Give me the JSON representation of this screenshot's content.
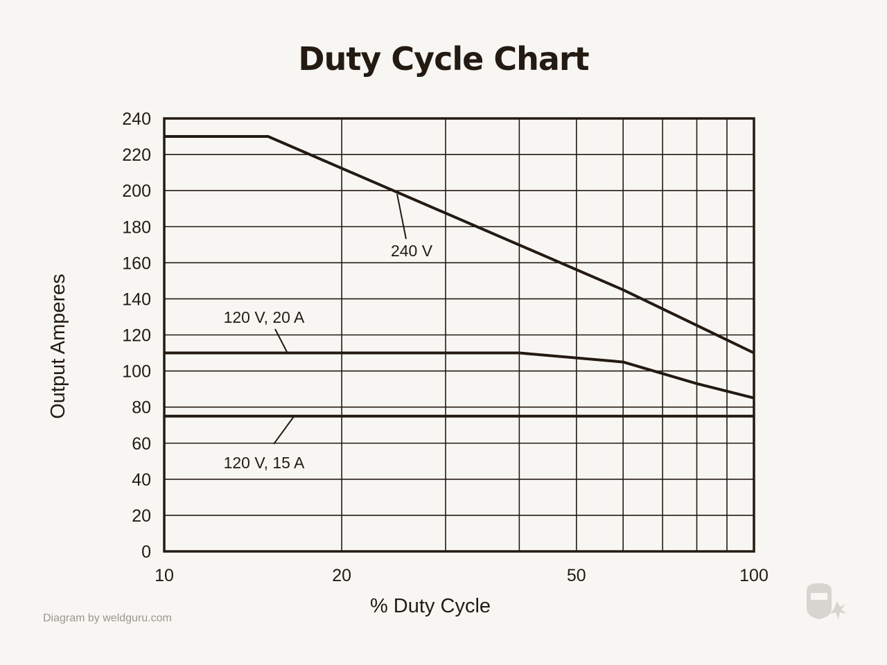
{
  "chart_data": {
    "type": "line",
    "title": "Duty Cycle Chart",
    "xlabel": "% Duty Cycle",
    "ylabel": "Output Amperes",
    "x_scale": "log",
    "xlim": [
      10,
      100
    ],
    "ylim": [
      0,
      240
    ],
    "x_ticks": [
      10,
      20,
      50,
      100
    ],
    "x_gridlines": [
      10,
      20,
      30,
      40,
      50,
      60,
      70,
      80,
      90,
      100
    ],
    "y_ticks": [
      0,
      20,
      40,
      60,
      80,
      100,
      120,
      140,
      160,
      180,
      200,
      220,
      240
    ],
    "grid": true,
    "legend": "none (series labeled inline with leader lines)",
    "series": [
      {
        "name": "240 V",
        "x": [
          10,
          15,
          60,
          100
        ],
        "y": [
          230,
          230,
          145,
          110
        ]
      },
      {
        "name": "120 V, 20 A",
        "x": [
          10,
          40,
          60,
          80,
          100
        ],
        "y": [
          110,
          110,
          105,
          93,
          85
        ]
      },
      {
        "name": "120 V, 15 A",
        "x": [
          10,
          100
        ],
        "y": [
          75,
          75
        ]
      }
    ],
    "color": "#231a12"
  },
  "footer": {
    "credit": "Diagram by weldguru.com",
    "watermark_icon": "welder-mask-icon"
  }
}
